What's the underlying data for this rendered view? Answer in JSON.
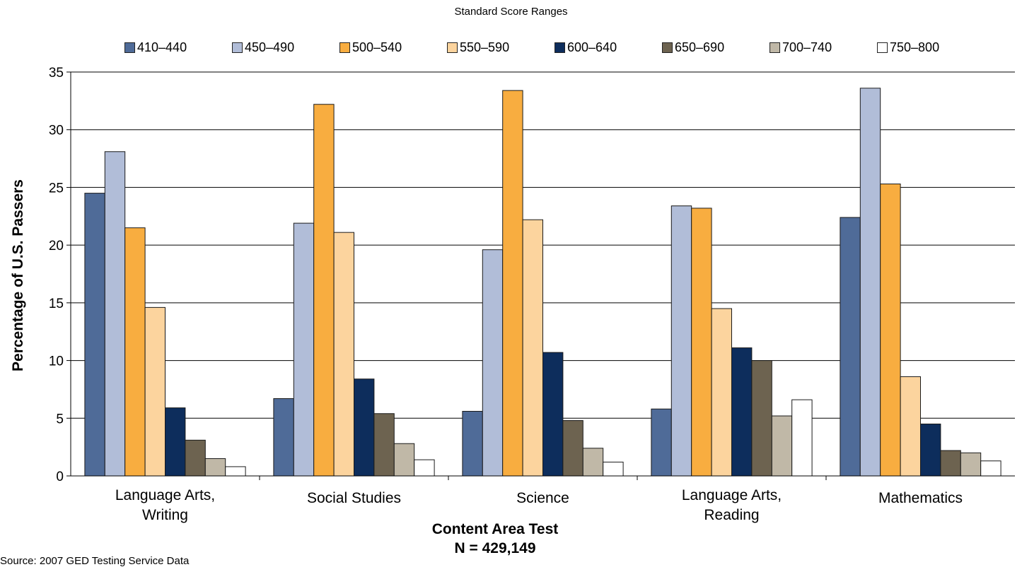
{
  "chart_data": {
    "type": "bar",
    "title": "",
    "legend_title": "Standard Score Ranges",
    "legend_position": "top",
    "xlabel_lines": [
      "Content Area Test",
      "N = 429,149"
    ],
    "ylabel": "Percentage of U.S. Passers",
    "ylim": [
      0,
      35
    ],
    "yticks": [
      0,
      5,
      10,
      15,
      20,
      25,
      30,
      35
    ],
    "grid": true,
    "categories": [
      [
        "Language Arts,",
        "Writing"
      ],
      [
        "Social Studies"
      ],
      [
        "Science"
      ],
      [
        "Language Arts,",
        "Reading"
      ],
      [
        "Mathematics"
      ]
    ],
    "series": [
      {
        "name": "410–440",
        "color": "#4f6b98",
        "values": [
          24.5,
          6.7,
          5.6,
          5.8,
          22.4
        ]
      },
      {
        "name": "450–490",
        "color": "#b1bdd8",
        "values": [
          28.1,
          21.9,
          19.6,
          23.4,
          33.6
        ]
      },
      {
        "name": "500–540",
        "color": "#f8ad40",
        "values": [
          21.5,
          32.2,
          33.4,
          23.2,
          25.3
        ]
      },
      {
        "name": "550–590",
        "color": "#fcd49e",
        "values": [
          14.6,
          21.1,
          22.2,
          14.5,
          8.6
        ]
      },
      {
        "name": "600–640",
        "color": "#0d2d5c",
        "values": [
          5.9,
          8.4,
          10.7,
          11.1,
          4.5
        ]
      },
      {
        "name": "650–690",
        "color": "#6d6350",
        "values": [
          3.1,
          5.4,
          4.8,
          10.0,
          2.2
        ]
      },
      {
        "name": "700–740",
        "color": "#c0b8a7",
        "values": [
          1.5,
          2.8,
          2.4,
          5.2,
          2.0
        ]
      },
      {
        "name": "750–800",
        "color": "#ffffff",
        "values": [
          0.8,
          1.4,
          1.2,
          6.6,
          1.3
        ]
      }
    ]
  },
  "source_note": "Source: 2007 GED Testing Service Data"
}
